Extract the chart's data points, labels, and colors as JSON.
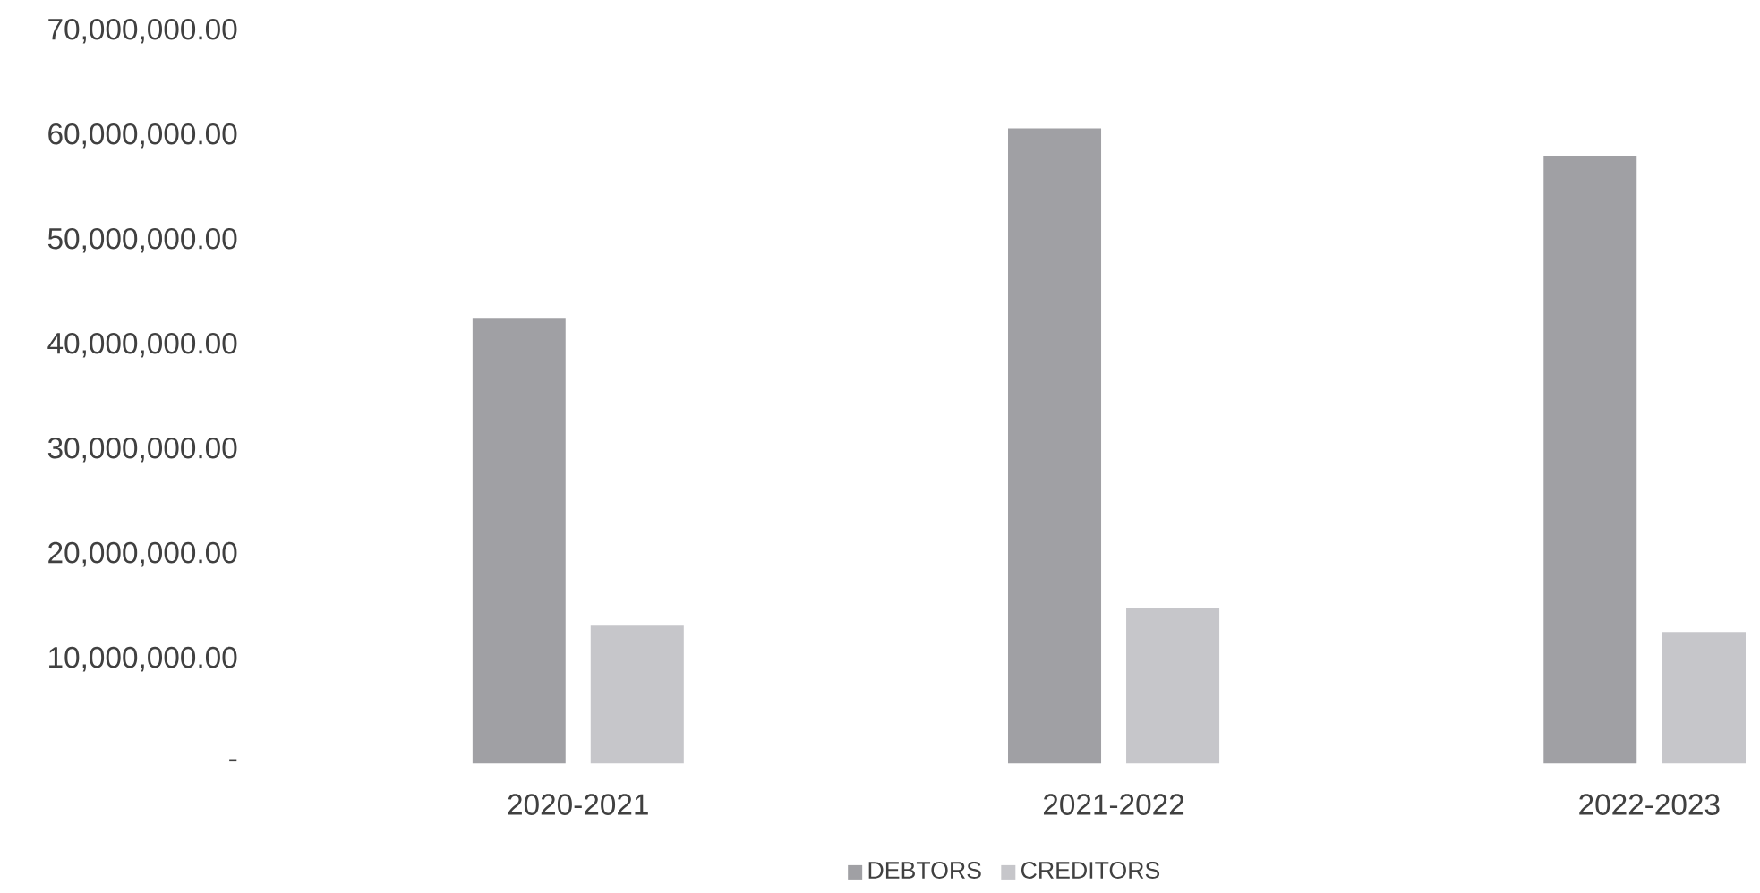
{
  "chart_data": {
    "type": "bar",
    "categories": [
      "2020-2021",
      "2021-2022",
      "2022-2023"
    ],
    "series": [
      {
        "name": "DEBTORS",
        "color": "#a0a0a4",
        "values": [
          42600000,
          60700000,
          58100000
        ]
      },
      {
        "name": "CREDITORS",
        "color": "#c6c6ca",
        "values": [
          13200000,
          14900000,
          12600000
        ]
      }
    ],
    "ylim": [
      0,
      70000000
    ],
    "yticks": [
      {
        "value": 0,
        "label": "-"
      },
      {
        "value": 10000000,
        "label": "10,000,000.00"
      },
      {
        "value": 20000000,
        "label": "20,000,000.00"
      },
      {
        "value": 30000000,
        "label": "30,000,000.00"
      },
      {
        "value": 40000000,
        "label": "40,000,000.00"
      },
      {
        "value": 50000000,
        "label": "50,000,000.00"
      },
      {
        "value": 60000000,
        "label": "60,000,000.00"
      },
      {
        "value": 70000000,
        "label": "70,000,000.00"
      }
    ],
    "grid": false,
    "legend": "bottom"
  }
}
